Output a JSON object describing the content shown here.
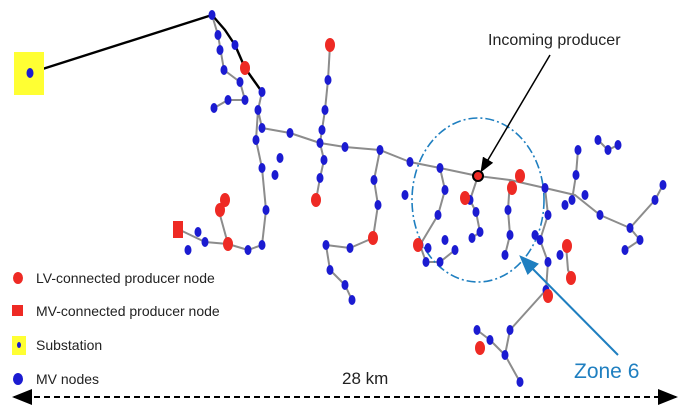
{
  "annotations": {
    "incoming_producer": "Incoming producer",
    "zone_label": "Zone 6",
    "distance": "28 km"
  },
  "legend": {
    "lv_producer": "LV-connected producer node",
    "mv_producer": "MV-connected producer node",
    "substation": "Substation",
    "mv_nodes": "MV nodes"
  },
  "colors": {
    "mv_node": "#1b1bd1",
    "lv_producer": "#ee2a24",
    "substation_bg": "#ffff33",
    "zone_accent": "#1f7fc0",
    "feeder_line": "#8c8c8c",
    "main_line": "#000000"
  }
}
